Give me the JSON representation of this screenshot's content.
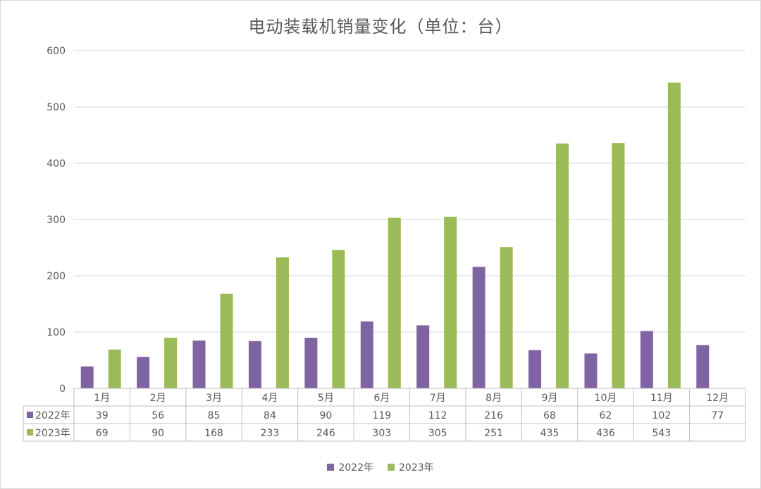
{
  "chart_data": {
    "type": "bar",
    "title": "电动装载机销量变化（单位：台）",
    "categories": [
      "1月",
      "2月",
      "3月",
      "4月",
      "5月",
      "6月",
      "7月",
      "8月",
      "9月",
      "10月",
      "11月",
      "12月"
    ],
    "series": [
      {
        "name": "2022年",
        "color": "#8064a2",
        "values": [
          39,
          56,
          85,
          84,
          90,
          119,
          112,
          216,
          68,
          62,
          102,
          77
        ]
      },
      {
        "name": "2023年",
        "color": "#9bbb59",
        "values": [
          69,
          90,
          168,
          233,
          246,
          303,
          305,
          251,
          435,
          436,
          543,
          null
        ]
      }
    ],
    "ylim": [
      0,
      600
    ],
    "yticks": [
      0,
      100,
      200,
      300,
      400,
      500,
      600
    ],
    "grid": true,
    "legend_position": "bottom",
    "data_table": true
  }
}
